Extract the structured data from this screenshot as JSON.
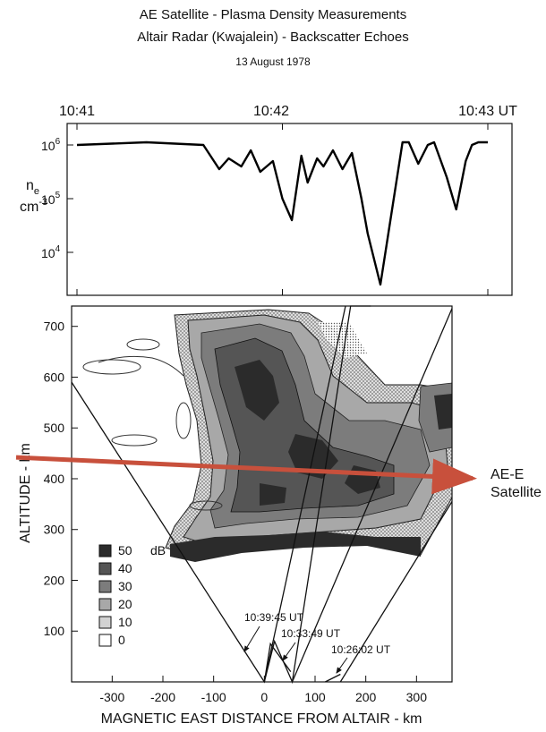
{
  "header": {
    "title": "AE Satellite - Plasma Density Measurements",
    "subtitle": "Altair Radar (Kwajalein) - Backscatter Echoes",
    "date": "13 August 1978"
  },
  "chart_data": [
    {
      "type": "line",
      "xlabel": "",
      "ylabel": "ne cm-3",
      "ylabel_main": "n",
      "ylabel_sub": "e",
      "ylabel_unit": "cm",
      "ylabel_exp": "-3",
      "time_ticks": [
        "10:41",
        "10:42",
        "10:43 UT"
      ],
      "y_ticks": [
        {
          "base": "10",
          "exp": "6",
          "log": 6
        },
        {
          "base": "10",
          "exp": "5",
          "log": 5
        },
        {
          "base": "10",
          "exp": "4",
          "log": 4
        }
      ],
      "ylim_log10": [
        3.2,
        6.4
      ],
      "xlim_seconds_after_1041": [
        0,
        130
      ],
      "x_seconds": [
        0,
        22,
        40,
        45,
        48,
        52,
        55,
        58,
        62,
        65,
        68,
        71,
        73,
        76,
        78,
        81,
        84,
        87,
        90,
        92,
        96,
        103,
        105,
        108,
        111,
        113,
        117,
        120,
        123,
        125,
        127,
        130
      ],
      "log10_ne": [
        6.0,
        6.05,
        6.0,
        5.55,
        5.75,
        5.6,
        5.9,
        5.5,
        5.7,
        5.0,
        4.6,
        5.8,
        5.3,
        5.75,
        5.6,
        5.9,
        5.55,
        5.85,
        5.0,
        4.35,
        3.4,
        6.05,
        6.05,
        5.65,
        6.0,
        6.05,
        5.4,
        4.8,
        5.7,
        6.0,
        6.05,
        6.05
      ]
    },
    {
      "type": "heatmap",
      "xlabel": "MAGNETIC EAST DISTANCE FROM ALTAIR - km",
      "ylabel": "ALTITUDE - km",
      "x_ticks": [
        "-300",
        "-200",
        "-100",
        "0",
        "100",
        "200",
        "300"
      ],
      "x_tick_values": [
        -300,
        -200,
        -100,
        0,
        100,
        200,
        300
      ],
      "y_ticks": [
        "100",
        "200",
        "300",
        "400",
        "500",
        "600",
        "700"
      ],
      "y_tick_values": [
        100,
        200,
        300,
        400,
        500,
        600,
        700
      ],
      "xlim": [
        -380,
        370
      ],
      "ylim": [
        0,
        740
      ],
      "legend_unit": "dB",
      "legend": [
        {
          "label": "50",
          "color": "#2b2b2b"
        },
        {
          "label": "40",
          "color": "#555555"
        },
        {
          "label": "30",
          "color": "#7c7c7c"
        },
        {
          "label": "20",
          "color": "#a8a8a8"
        },
        {
          "label": "10",
          "color": "#d2d2d2"
        },
        {
          "label": "0",
          "color": "#ffffff"
        }
      ],
      "scan_labels": [
        "10:39:45 UT",
        "10:33:49 UT",
        "10:26:02 UT"
      ],
      "satellite_label_line1": "AE-E",
      "satellite_label_line2": "Satellite",
      "satellite_track_color": "#c8503c",
      "satellite_track_km": [
        [
          -380,
          435
        ],
        [
          260,
          415
        ]
      ]
    }
  ]
}
